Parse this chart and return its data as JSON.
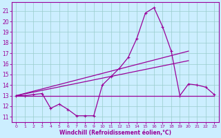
{
  "xlabel": "Windchill (Refroidissement éolien,°C)",
  "bg_color": "#cceeff",
  "line_color": "#990099",
  "grid_color": "#99cccc",
  "xlim": [
    -0.5,
    23.5
  ],
  "ylim": [
    10.5,
    21.8
  ],
  "yticks": [
    11,
    12,
    13,
    14,
    15,
    16,
    17,
    18,
    19,
    20,
    21
  ],
  "xticks": [
    0,
    1,
    2,
    3,
    4,
    5,
    6,
    7,
    8,
    9,
    10,
    11,
    12,
    13,
    14,
    15,
    16,
    17,
    18,
    19,
    20,
    21,
    22,
    23
  ],
  "line1_x": [
    0,
    1,
    2,
    3,
    4,
    5,
    6,
    7,
    8,
    9,
    10,
    11,
    12,
    13,
    14,
    15,
    16,
    17,
    18,
    19,
    20,
    21,
    22,
    23
  ],
  "line1_y": [
    13.0,
    13.0,
    13.1,
    13.2,
    11.8,
    12.2,
    11.7,
    11.1,
    11.1,
    11.1,
    14.0,
    14.8,
    15.6,
    16.6,
    18.4,
    20.8,
    21.3,
    19.5,
    17.2,
    13.0,
    14.1,
    14.0,
    13.8,
    13.1
  ],
  "line2_x": [
    0,
    23
  ],
  "line2_y": [
    13.0,
    13.0
  ],
  "line3_x": [
    0,
    20
  ],
  "line3_y": [
    13.0,
    16.3
  ],
  "line4_x": [
    0,
    20
  ],
  "line4_y": [
    13.0,
    17.2
  ]
}
